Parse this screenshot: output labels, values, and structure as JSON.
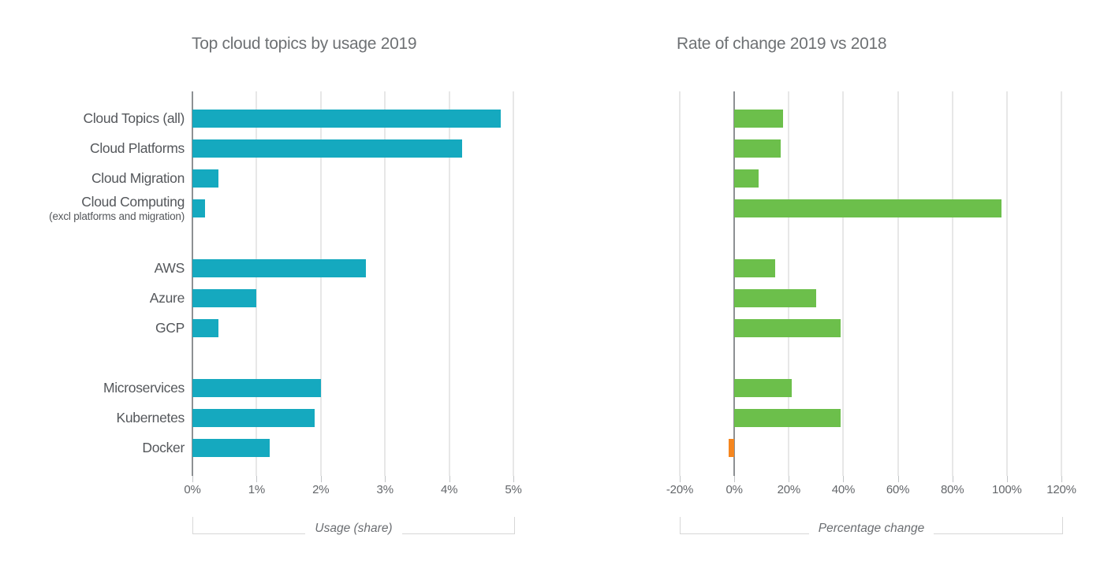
{
  "figure": {
    "background": "#ffffff",
    "description": "Two horizontal grouped bar charts comparing cloud topic usage and year-over-year change"
  },
  "chart_data": [
    {
      "type": "bar",
      "orientation": "horizontal",
      "title": "Top cloud topics by usage 2019",
      "xlabel": "Usage (share)",
      "xlim": [
        0,
        5
      ],
      "x_ticks": [
        0,
        1,
        2,
        3,
        4,
        5
      ],
      "x_tick_labels": [
        "0%",
        "1%",
        "2%",
        "3%",
        "4%",
        "5%"
      ],
      "grid": true,
      "bar_color": "#15a9bf",
      "groups": [
        {
          "rows": [
            {
              "label": "Cloud Topics (all)",
              "value": 4.8
            },
            {
              "label": "Cloud Platforms",
              "value": 4.2
            },
            {
              "label": "Cloud Migration",
              "value": 0.4
            },
            {
              "label": "Cloud Computing",
              "sublabel": "(excl platforms and migration)",
              "value": 0.2
            }
          ]
        },
        {
          "rows": [
            {
              "label": "AWS",
              "value": 2.7
            },
            {
              "label": "Azure",
              "value": 1.0
            },
            {
              "label": "GCP",
              "value": 0.4
            }
          ]
        },
        {
          "rows": [
            {
              "label": "Microservices",
              "value": 2.0
            },
            {
              "label": "Kubernetes",
              "value": 1.9
            },
            {
              "label": "Docker",
              "value": 1.2
            }
          ]
        }
      ]
    },
    {
      "type": "bar",
      "orientation": "horizontal",
      "title": "Rate of change 2019 vs 2018",
      "xlabel": "Percentage change",
      "xlim": [
        -20,
        120
      ],
      "x_ticks": [
        -20,
        0,
        20,
        40,
        60,
        80,
        100,
        120
      ],
      "x_tick_labels": [
        "-20%",
        "0%",
        "20%",
        "40%",
        "60%",
        "80%",
        "100%",
        "120%"
      ],
      "grid": true,
      "bar_color": "#6cbf4b",
      "negative_color": "#f5861f",
      "groups": [
        {
          "rows": [
            {
              "label": "Cloud Topics (all)",
              "value": 18
            },
            {
              "label": "Cloud Platforms",
              "value": 17
            },
            {
              "label": "Cloud Migration",
              "value": 9
            },
            {
              "label": "Cloud Computing",
              "value": 98
            }
          ]
        },
        {
          "rows": [
            {
              "label": "AWS",
              "value": 15
            },
            {
              "label": "Azure",
              "value": 30
            },
            {
              "label": "GCP",
              "value": 39
            }
          ]
        },
        {
          "rows": [
            {
              "label": "Microservices",
              "value": 21
            },
            {
              "label": "Kubernetes",
              "value": 39
            },
            {
              "label": "Docker",
              "value": -2
            }
          ]
        }
      ]
    }
  ]
}
